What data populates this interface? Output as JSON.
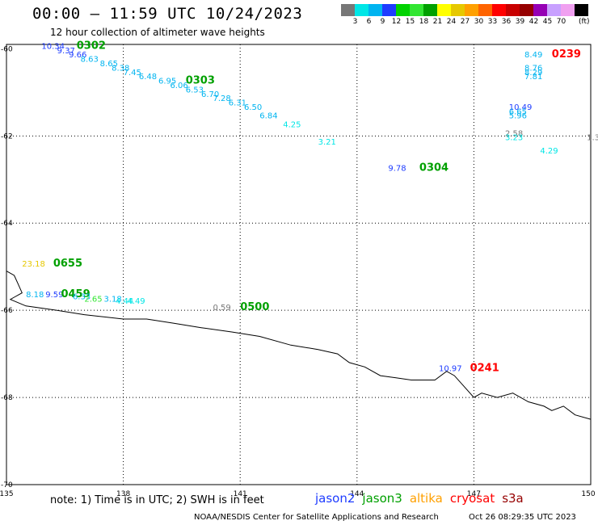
{
  "header": {
    "title": "00:00 – 11:59 UTC 10/24/2023",
    "subtitle": "12 hour collection of altimeter wave heights"
  },
  "legend": {
    "unit": "(ft)",
    "items": [
      {
        "label": "",
        "color": "#777777"
      },
      {
        "label": "3",
        "color": "#00e6e6"
      },
      {
        "label": "6",
        "color": "#00b4f0"
      },
      {
        "label": "9",
        "color": "#1e3cff"
      },
      {
        "label": "12",
        "color": "#00d200"
      },
      {
        "label": "15",
        "color": "#32e632"
      },
      {
        "label": "18",
        "color": "#00a000"
      },
      {
        "label": "21",
        "color": "#ffff00"
      },
      {
        "label": "24",
        "color": "#e6c800"
      },
      {
        "label": "27",
        "color": "#ffa000"
      },
      {
        "label": "30",
        "color": "#ff6400"
      },
      {
        "label": "33",
        "color": "#ff0000"
      },
      {
        "label": "36",
        "color": "#c80000"
      },
      {
        "label": "39",
        "color": "#960000"
      },
      {
        "label": "42",
        "color": "#9600b4"
      },
      {
        "label": "45",
        "color": "#c8a0ff"
      },
      {
        "label": "70",
        "color": "#f0a0f0"
      },
      {
        "label": "",
        "color": "#000000"
      }
    ]
  },
  "map": {
    "lon_range": [
      135,
      150
    ],
    "lat_range": [
      -59.9,
      -70
    ],
    "lon_ticks": [
      "135",
      "138",
      "141",
      "144",
      "147",
      "150"
    ],
    "lat_ticks": [
      "-60",
      "-62",
      "-64",
      "-66",
      "-68",
      "-70"
    ],
    "coastline": [
      [
        135,
        -65.1
      ],
      [
        135.2,
        -65.2
      ],
      [
        135.3,
        -65.4
      ],
      [
        135.4,
        -65.6
      ],
      [
        135.2,
        -65.7
      ],
      [
        135.1,
        -65.75
      ],
      [
        135.5,
        -65.9
      ],
      [
        136.3,
        -66.0
      ],
      [
        137.0,
        -66.1
      ],
      [
        138.0,
        -66.2
      ],
      [
        138.6,
        -66.2
      ],
      [
        139.3,
        -66.3
      ],
      [
        140.0,
        -66.4
      ],
      [
        140.8,
        -66.5
      ],
      [
        141.5,
        -66.6
      ],
      [
        142.3,
        -66.8
      ],
      [
        143.0,
        -66.9
      ],
      [
        143.5,
        -67.0
      ],
      [
        143.8,
        -67.2
      ],
      [
        144.2,
        -67.3
      ],
      [
        144.6,
        -67.5
      ],
      [
        145.0,
        -67.55
      ],
      [
        145.4,
        -67.6
      ],
      [
        146.0,
        -67.6
      ],
      [
        146.3,
        -67.4
      ],
      [
        146.5,
        -67.5
      ],
      [
        146.8,
        -67.8
      ],
      [
        147.0,
        -68.0
      ],
      [
        147.2,
        -67.9
      ],
      [
        147.6,
        -68.0
      ],
      [
        148.0,
        -67.9
      ],
      [
        148.4,
        -68.1
      ],
      [
        148.8,
        -68.2
      ],
      [
        149.0,
        -68.3
      ],
      [
        149.3,
        -68.2
      ],
      [
        149.6,
        -68.4
      ],
      [
        150.0,
        -68.5
      ]
    ],
    "observations": [
      {
        "text": "10.34",
        "lon": 135.9,
        "lat": -60.0,
        "color": "#1e3cff"
      },
      {
        "text": "0302",
        "lon": 136.8,
        "lat": -60.0,
        "color": "#00a000",
        "bold": true
      },
      {
        "text": "9.37",
        "lon": 136.3,
        "lat": -60.1,
        "color": "#1e3cff"
      },
      {
        "text": "9.66",
        "lon": 136.6,
        "lat": -60.2,
        "color": "#1e3cff"
      },
      {
        "text": "8.63",
        "lon": 136.9,
        "lat": -60.3,
        "color": "#00b4f0"
      },
      {
        "text": "8.65",
        "lon": 137.4,
        "lat": -60.4,
        "color": "#00b4f0"
      },
      {
        "text": "8.38",
        "lon": 137.7,
        "lat": -60.5,
        "color": "#00b4f0"
      },
      {
        "text": "7.45",
        "lon": 138.0,
        "lat": -60.6,
        "color": "#00b4f0"
      },
      {
        "text": "6.48",
        "lon": 138.4,
        "lat": -60.7,
        "color": "#00b4f0"
      },
      {
        "text": "6.95",
        "lon": 138.9,
        "lat": -60.8,
        "color": "#00b4f0"
      },
      {
        "text": "6.06",
        "lon": 139.2,
        "lat": -60.9,
        "color": "#00b4f0"
      },
      {
        "text": "0303",
        "lon": 139.6,
        "lat": -60.8,
        "color": "#00a000",
        "bold": true
      },
      {
        "text": "6.53",
        "lon": 139.6,
        "lat": -61.0,
        "color": "#00b4f0"
      },
      {
        "text": "6.70",
        "lon": 140.0,
        "lat": -61.1,
        "color": "#00b4f0"
      },
      {
        "text": "7.28",
        "lon": 140.3,
        "lat": -61.2,
        "color": "#00b4f0"
      },
      {
        "text": "6.31",
        "lon": 140.7,
        "lat": -61.3,
        "color": "#00b4f0"
      },
      {
        "text": "6.50",
        "lon": 141.1,
        "lat": -61.4,
        "color": "#00b4f0"
      },
      {
        "text": "6.84",
        "lon": 141.5,
        "lat": -61.6,
        "color": "#00b4f0"
      },
      {
        "text": "4.25",
        "lon": 142.1,
        "lat": -61.8,
        "color": "#00e6e6"
      },
      {
        "text": "3.21",
        "lon": 143.0,
        "lat": -62.2,
        "color": "#00e6e6"
      },
      {
        "text": "9.78",
        "lon": 144.8,
        "lat": -62.8,
        "color": "#1e3cff"
      },
      {
        "text": "0304",
        "lon": 145.6,
        "lat": -62.8,
        "color": "#00a000",
        "bold": true
      },
      {
        "text": "8.49",
        "lon": 148.3,
        "lat": -60.2,
        "color": "#00b4f0"
      },
      {
        "text": "0239",
        "lon": 149.0,
        "lat": -60.2,
        "color": "#ff0000",
        "bold": true
      },
      {
        "text": "8.76",
        "lon": 148.3,
        "lat": -60.5,
        "color": "#00b4f0"
      },
      {
        "text": "8.29",
        "lon": 148.3,
        "lat": -60.6,
        "color": "#00b4f0"
      },
      {
        "text": "7.81",
        "lon": 148.3,
        "lat": -60.7,
        "color": "#00b4f0"
      },
      {
        "text": "10.49",
        "lon": 147.9,
        "lat": -61.4,
        "color": "#1e3cff"
      },
      {
        "text": "6.65",
        "lon": 147.9,
        "lat": -61.5,
        "color": "#00b4f0"
      },
      {
        "text": "5.96",
        "lon": 147.9,
        "lat": -61.6,
        "color": "#00b4f0"
      },
      {
        "text": "2.58",
        "lon": 147.8,
        "lat": -62.0,
        "color": "#777777"
      },
      {
        "text": "3.23",
        "lon": 147.8,
        "lat": -62.1,
        "color": "#00e6e6"
      },
      {
        "text": "4.29",
        "lon": 148.7,
        "lat": -62.4,
        "color": "#00e6e6"
      },
      {
        "text": "1.3",
        "lon": 149.9,
        "lat": -62.1,
        "color": "#777777"
      },
      {
        "text": "23.18",
        "lon": 135.4,
        "lat": -65.0,
        "color": "#e6c800"
      },
      {
        "text": "0655",
        "lon": 136.2,
        "lat": -65.0,
        "color": "#00a000",
        "bold": true
      },
      {
        "text": "8.18",
        "lon": 135.5,
        "lat": -65.7,
        "color": "#00b4f0"
      },
      {
        "text": "9.59",
        "lon": 136.0,
        "lat": -65.7,
        "color": "#1e3cff"
      },
      {
        "text": "0459",
        "lon": 136.4,
        "lat": -65.7,
        "color": "#00a000",
        "bold": true
      },
      {
        "text": "6.33",
        "lon": 136.7,
        "lat": -65.75,
        "color": "#00b4f0"
      },
      {
        "text": "2.65",
        "lon": 137.0,
        "lat": -65.8,
        "color": "#32e632"
      },
      {
        "text": "3.18",
        "lon": 137.5,
        "lat": -65.8,
        "color": "#00b4f0"
      },
      {
        "text": "4.44",
        "lon": 137.8,
        "lat": -65.85,
        "color": "#00e6e6"
      },
      {
        "text": "4.49",
        "lon": 138.1,
        "lat": -65.85,
        "color": "#00e6e6"
      },
      {
        "text": "0.59",
        "lon": 140.3,
        "lat": -66.0,
        "color": "#777777"
      },
      {
        "text": "0500",
        "lon": 141.0,
        "lat": -66.0,
        "color": "#00a000",
        "bold": true
      },
      {
        "text": "10.97",
        "lon": 146.1,
        "lat": -67.4,
        "color": "#1e3cff"
      },
      {
        "text": "0241",
        "lon": 146.9,
        "lat": -67.4,
        "color": "#ff0000",
        "bold": true
      }
    ]
  },
  "note": "note: 1) Time is in UTC; 2) SWH is in feet",
  "satellites": [
    {
      "name": "jason2",
      "color": "#1e3cff"
    },
    {
      "name": "jason3",
      "color": "#00a000"
    },
    {
      "name": "altika",
      "color": "#ffa000"
    },
    {
      "name": "cryosat",
      "color": "#ff0000"
    },
    {
      "name": "s3a",
      "color": "#960000"
    }
  ],
  "footer": {
    "left": "NOAA/NESDIS Center for Satellite Applications and Research",
    "right": "Oct 26 08:29:35 UTC 2023"
  }
}
